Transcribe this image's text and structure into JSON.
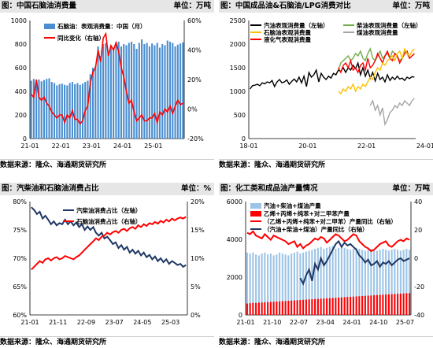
{
  "panels": [
    {
      "title": "图：中国石脑油消费量",
      "unit": "单位：万吨",
      "source": "数据来源：隆众、海通期货研究所"
    },
    {
      "title": "图：中国成品油&石脑油/LPG消费对比",
      "unit": "单位：万吨",
      "source": "数据来源：隆众、海通期货研究所"
    },
    {
      "title": "图：汽柴油和石脑油消费占比",
      "unit": "单位：%",
      "source": "数据来源：隆众、海通期货研究所"
    },
    {
      "title": "图：化工类和成品油产量情况",
      "unit": "单位：万吨",
      "source": "数据来源：隆众、海通期货研究所"
    }
  ],
  "chart_data": [
    {
      "type": "bar",
      "title": "中国石脑油消费量",
      "x_ticks": [
        "21-01",
        "22-01",
        "23-01",
        "24-01",
        "25-01"
      ],
      "series": [
        {
          "name": "石脑油：表观消费量：中国（月）",
          "axis": "left",
          "color": "#4a8ed0",
          "values": [
            490,
            505,
            470,
            500,
            485,
            495,
            505,
            510,
            480,
            470,
            450,
            460,
            465,
            455,
            450,
            470,
            480,
            460,
            470,
            455,
            465,
            480,
            490,
            545,
            600,
            610,
            780,
            700,
            800,
            810,
            730,
            790,
            770,
            800,
            820,
            780,
            800,
            790,
            810,
            820,
            800,
            760,
            810,
            840,
            800,
            810,
            780,
            805,
            790,
            810,
            770,
            800,
            790,
            830,
            820,
            810,
            780,
            795,
            805,
            815
          ]
        },
        {
          "name": "同比变化（右轴）",
          "axis": "right",
          "type": "line",
          "color": "#ff0000",
          "values": [
            10,
            8,
            20,
            8,
            6,
            8,
            4,
            2,
            -2,
            -4,
            -6,
            -4,
            -4,
            -9,
            -4,
            -6,
            -1,
            -7,
            -7,
            -10,
            -8,
            -1,
            2,
            18,
            25,
            28,
            40,
            32,
            48,
            51,
            36,
            43,
            40,
            45,
            39,
            28,
            22,
            12,
            4,
            6,
            -2,
            -8,
            -6,
            -4,
            -8,
            -8,
            -6,
            -6,
            -3,
            -9,
            -2,
            -4,
            0,
            -2,
            2,
            -3,
            2,
            6,
            3,
            4
          ]
        }
      ],
      "ylim_left": [
        0,
        1000
      ],
      "yticks_left": [
        0,
        200,
        400,
        600,
        800,
        1000
      ],
      "ylim_right": [
        -20,
        60
      ],
      "yticks_right": [
        "60%",
        "40%",
        "20%",
        "0%",
        "-20%"
      ]
    },
    {
      "type": "line",
      "title": "中国成品油&石脑油/LPG消费对比",
      "x_ticks": [
        "18-01",
        "20-01",
        "22-01",
        "24-01"
      ],
      "series": [
        {
          "name": "汽油表观消费量（左轴）",
          "color": "#000000",
          "values": [
            1050,
            1120,
            1130,
            1150,
            1120,
            1180,
            1160,
            1200,
            1180,
            1230,
            1100,
            1200,
            1250,
            1180,
            1200,
            1240,
            1150,
            1210,
            1260,
            1200,
            1300,
            1180,
            1320,
            1100,
            1400,
            1300,
            1350,
            1450,
            1200,
            1380,
            1300,
            1250,
            1320,
            1280,
            1380,
            1350,
            1450,
            1420,
            1500,
            1400,
            1500,
            1450,
            1550,
            1480,
            1600,
            1350,
            1500,
            1320,
            1450,
            1280,
            1400,
            1220,
            1380,
            1250,
            1300,
            1200,
            1350,
            1230,
            1300,
            1250,
            1320,
            1260,
            1280,
            1230,
            1300,
            1270,
            1310,
            1300
          ]
        },
        {
          "name": "柴油表观消费量（左轴）",
          "color": "#70ad47",
          "values": [
            null,
            null,
            null,
            null,
            null,
            null,
            null,
            null,
            null,
            null,
            null,
            null,
            null,
            null,
            null,
            null,
            null,
            null,
            null,
            null,
            null,
            null,
            null,
            null,
            null,
            null,
            null,
            null,
            null,
            null,
            null,
            null,
            null,
            null,
            null,
            null,
            1450,
            1600,
            1650,
            1700,
            1750,
            1650,
            1700,
            1800,
            1750,
            1850,
            1700,
            1650,
            1800,
            1900,
            1700,
            1650,
            1750,
            1850,
            1700,
            1750,
            1800,
            1700,
            1850,
            1800,
            1750,
            1650,
            1700,
            1850,
            1800,
            1700,
            1750,
            1800
          ]
        },
        {
          "name": "液化气表观消费量",
          "color": "#ff0000",
          "values": [
            null,
            null,
            null,
            null,
            null,
            null,
            null,
            null,
            null,
            null,
            null,
            null,
            null,
            null,
            null,
            null,
            null,
            null,
            null,
            null,
            null,
            null,
            null,
            null,
            null,
            null,
            null,
            null,
            null,
            null,
            null,
            null,
            null,
            null,
            null,
            null,
            1500,
            1400,
            1550,
            1600,
            1500,
            1650,
            1450,
            1500,
            1400,
            1550,
            1600,
            1450,
            1700,
            1500,
            1550,
            1650,
            1800,
            1700,
            1600,
            1750,
            1850,
            1700,
            1650,
            1800,
            1750,
            1600,
            1700,
            1800,
            1850,
            1700,
            1750,
            1800
          ]
        },
        {
          "name": "煤油表观消费量",
          "color": "#a5a5a5",
          "values": [
            null,
            null,
            null,
            null,
            null,
            null,
            null,
            null,
            null,
            null,
            null,
            null,
            null,
            null,
            null,
            null,
            null,
            null,
            null,
            null,
            null,
            null,
            null,
            null,
            null,
            null,
            null,
            null,
            null,
            null,
            null,
            null,
            null,
            null,
            null,
            null,
            null,
            null,
            null,
            null,
            null,
            null,
            null,
            null,
            null,
            null,
            null,
            null,
            null,
            700,
            800,
            600,
            700,
            500,
            650,
            300,
            400,
            550,
            600,
            700,
            650,
            750,
            700,
            800,
            750,
            700,
            800,
            850
          ]
        },
        {
          "name": "石脑油表观消费量",
          "color": "#ffc000",
          "values": [
            null,
            null,
            null,
            null,
            null,
            null,
            null,
            null,
            null,
            null,
            null,
            null,
            null,
            null,
            null,
            null,
            null,
            null,
            null,
            null,
            null,
            null,
            null,
            null,
            null,
            null,
            null,
            null,
            null,
            null,
            null,
            null,
            null,
            null,
            null,
            null,
            1000,
            950,
            1050,
            1000,
            1100,
            1050,
            1150,
            1000,
            1100,
            1050,
            1150,
            1100,
            1200,
            1300,
            1250,
            1400,
            1500,
            1450,
            1600,
            1550,
            1650,
            1700,
            1750,
            1650,
            1800,
            1850,
            1700,
            1900,
            1800,
            1750,
            1850,
            1900
          ]
        }
      ],
      "ylim": [
        0,
        2500
      ],
      "yticks": [
        0,
        500,
        1000,
        1500,
        2000,
        2500
      ]
    },
    {
      "type": "line",
      "title": "汽柴油和石脑油消费占比",
      "x_ticks": [
        "21-01",
        "21-11",
        "22-09",
        "23-07",
        "24-05",
        "25-03"
      ],
      "series": [
        {
          "name": "汽柴油消费占比（左轴）",
          "axis": "left",
          "color": "#1f3864",
          "values": [
            79,
            78.5,
            77.8,
            78.2,
            77,
            77.5,
            76.8,
            76,
            76.5,
            75.8,
            76.2,
            76,
            76.8,
            76,
            76.5,
            75.8,
            76.3,
            75.5,
            76,
            75,
            75.6,
            75,
            75.5,
            74.5,
            74,
            74.5,
            73.5,
            73.8,
            73.2,
            72.5,
            72.8,
            71.8,
            72.3,
            71.5,
            72,
            71,
            71.5,
            70.8,
            71.3,
            70.5,
            71,
            70.2,
            70.6,
            69.8,
            70.3,
            69.5,
            70,
            69.3,
            69.8,
            69,
            69.5,
            69.2,
            68.8,
            69,
            68.5,
            68.8
          ]
        },
        {
          "name": "石脑油消费占比（右轴）",
          "axis": "right",
          "color": "#ff0000",
          "values": [
            8,
            8.5,
            9,
            9.5,
            9.2,
            9.8,
            10,
            9.6,
            10,
            10.2,
            9.8,
            10,
            10.4,
            10.2,
            10,
            9.8,
            10.2,
            10.5,
            11,
            11.5,
            12,
            12.5,
            13,
            13.5,
            13.2,
            13.8,
            14,
            14.5,
            14.2,
            14.6,
            14.8,
            14.5,
            15,
            15.2,
            14.8,
            15.3,
            15.5,
            15.2,
            15.8,
            15.5,
            16,
            15.7,
            16.2,
            16,
            16.4,
            16.1,
            16.6,
            16.3,
            16.8,
            16.5,
            17,
            16.7,
            17,
            17.2,
            17,
            17.3
          ]
        }
      ],
      "ylim_left": [
        60,
        80
      ],
      "yticks_left": [
        "60%",
        "65%",
        "70%",
        "75%",
        "80%"
      ],
      "ylim_right": [
        0,
        20
      ],
      "yticks_right": [
        "0%",
        "5%",
        "10%",
        "15%",
        "20%"
      ]
    },
    {
      "type": "bar",
      "title": "化工类和成品油产量情况",
      "x_ticks": [
        "21-01",
        "21-10",
        "22-07",
        "23-04",
        "24-01",
        "24-10",
        "25-07"
      ],
      "series": [
        {
          "name": "汽油+柴油+煤油产量",
          "axis": "left",
          "type": "bar",
          "color": "#9dc3e6",
          "values": [
            3300,
            3250,
            3300,
            3200,
            3150,
            3250,
            3300,
            3200,
            3250,
            3150,
            3200,
            3300,
            3250,
            3200,
            3150,
            3250,
            3300,
            3350,
            3250,
            3300,
            3350,
            3400,
            3450,
            3500,
            3550,
            3600,
            3500,
            3550,
            3600,
            3650,
            3500,
            3550,
            3600,
            3550,
            3500,
            3450,
            3500,
            3550,
            3500,
            3450,
            3400,
            3450,
            3500,
            3450,
            3400,
            3450,
            3500,
            3450,
            3400,
            3450,
            3500,
            3450,
            3400,
            3450,
            3500,
            3450
          ]
        },
        {
          "name": "乙烯+丙烯+纯苯+对二甲苯产量",
          "axis": "left",
          "type": "bar",
          "color": "#ff0000",
          "values": [
            600,
            620,
            640,
            630,
            650,
            660,
            670,
            680,
            690,
            700,
            710,
            720,
            730,
            740,
            750,
            760,
            770,
            780,
            790,
            800,
            810,
            820,
            830,
            840,
            850,
            860,
            870,
            880,
            890,
            900,
            910,
            920,
            930,
            940,
            950,
            960,
            970,
            980,
            990,
            1000,
            1010,
            1020,
            1030,
            1040,
            1050,
            1060,
            1070,
            1080,
            1090,
            1100,
            1110,
            1120,
            1130,
            1140,
            1150,
            1160
          ]
        },
        {
          "name": "（乙烯+丙烯+纯苯+对二甲苯）产量同比（右轴）",
          "axis": "right",
          "type": "line",
          "color": "#ff0000",
          "values": [
            18,
            17,
            19,
            16,
            15,
            14,
            17,
            15,
            13,
            16,
            15,
            14,
            13,
            12,
            10,
            11,
            12,
            8,
            10,
            7,
            9,
            10,
            12,
            14,
            13,
            15,
            14,
            11,
            13,
            15,
            17,
            16,
            14,
            12,
            13,
            15,
            17,
            16,
            12,
            10,
            8,
            7,
            5,
            6,
            8,
            10,
            11,
            12,
            9,
            8,
            10,
            12,
            13,
            12,
            14,
            13
          ]
        },
        {
          "name": "（汽油+柴油+煤油）产量同比（右轴）",
          "axis": "right",
          "type": "line",
          "color": "#1f3864",
          "values": [
            null,
            null,
            null,
            null,
            null,
            null,
            null,
            null,
            null,
            null,
            null,
            null,
            null,
            null,
            null,
            null,
            null,
            null,
            -14,
            -18,
            -12,
            -8,
            -16,
            -4,
            -8,
            0,
            -5,
            -2,
            2,
            6,
            10,
            12,
            8,
            11,
            9,
            10,
            8,
            6,
            2,
            0,
            -3,
            -1,
            -5,
            -4,
            -2,
            -6,
            -3,
            -4,
            -2,
            -5,
            -3,
            -1,
            0,
            -2,
            -1,
            0
          ]
        }
      ],
      "ylim_left": [
        0,
        6000
      ],
      "yticks_left": [
        0,
        2000,
        4000,
        6000
      ],
      "ylim_right": [
        -40,
        40
      ],
      "yticks_right": [
        40,
        20,
        0,
        -20,
        -40
      ]
    }
  ]
}
